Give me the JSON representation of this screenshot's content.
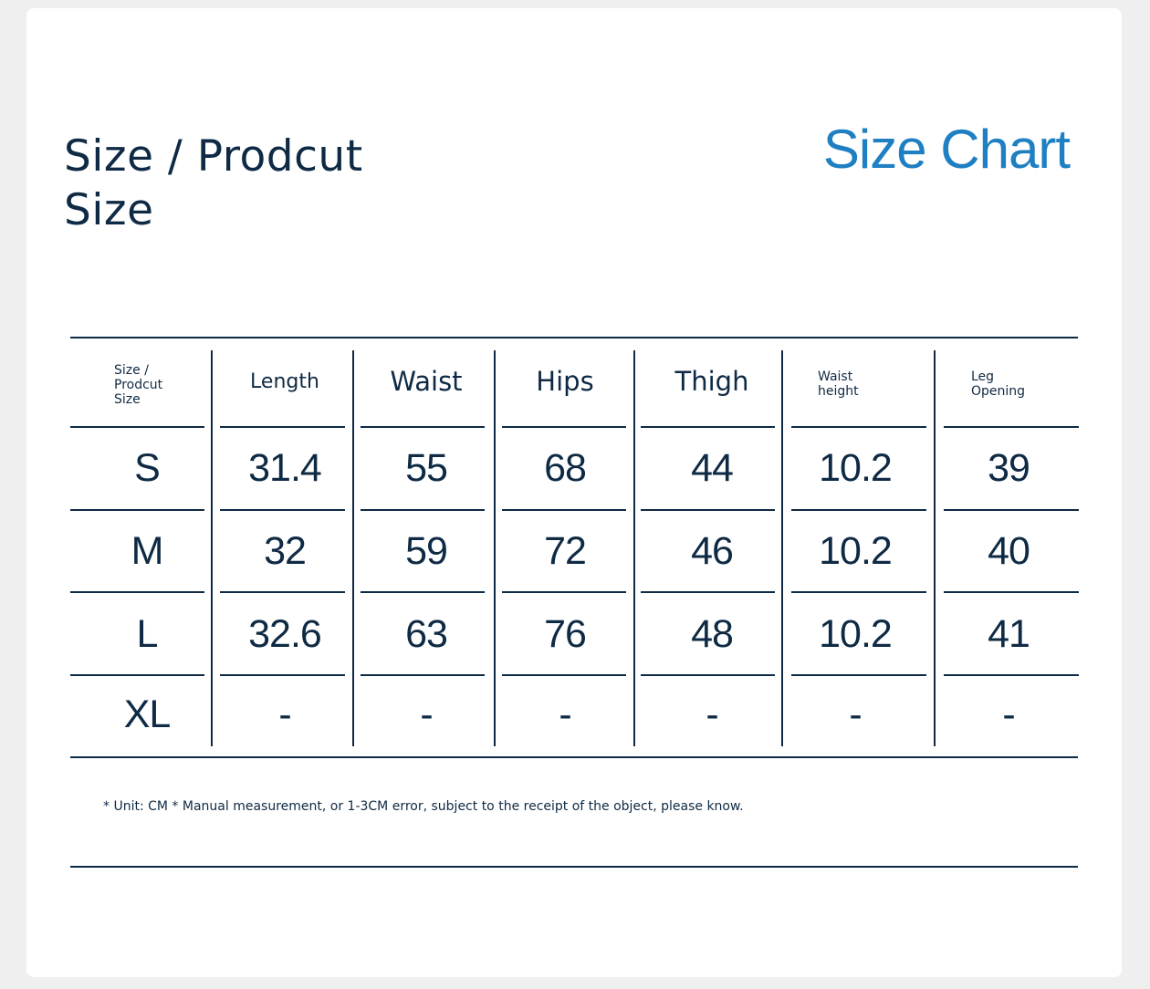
{
  "title_left": "Size / Prodcut Size",
  "title_right": "Size Chart",
  "table": {
    "columns": [
      {
        "label": "Size /\nProdcut\nSize",
        "style": "small"
      },
      {
        "label": "Length",
        "style": "large"
      },
      {
        "label": "Waist",
        "style": "large"
      },
      {
        "label": "Hips",
        "style": "large"
      },
      {
        "label": "Thigh",
        "style": "large"
      },
      {
        "label": "Waist\nheight",
        "style": "small"
      },
      {
        "label": "Leg\nOpening",
        "style": "small"
      }
    ],
    "rows": [
      [
        "S",
        "31.4",
        "55",
        "68",
        "44",
        "10.2",
        "39"
      ],
      [
        "M",
        "32",
        "59",
        "72",
        "46",
        "10.2",
        "40"
      ],
      [
        "L",
        "32.6",
        "63",
        "76",
        "48",
        "10.2",
        "41"
      ],
      [
        "XL",
        "-",
        "-",
        "-",
        "-",
        "-",
        "-"
      ]
    ]
  },
  "note": "* Unit: CM * Manual measurement, or 1-3CM error, subject to the receipt of the object, please know."
}
